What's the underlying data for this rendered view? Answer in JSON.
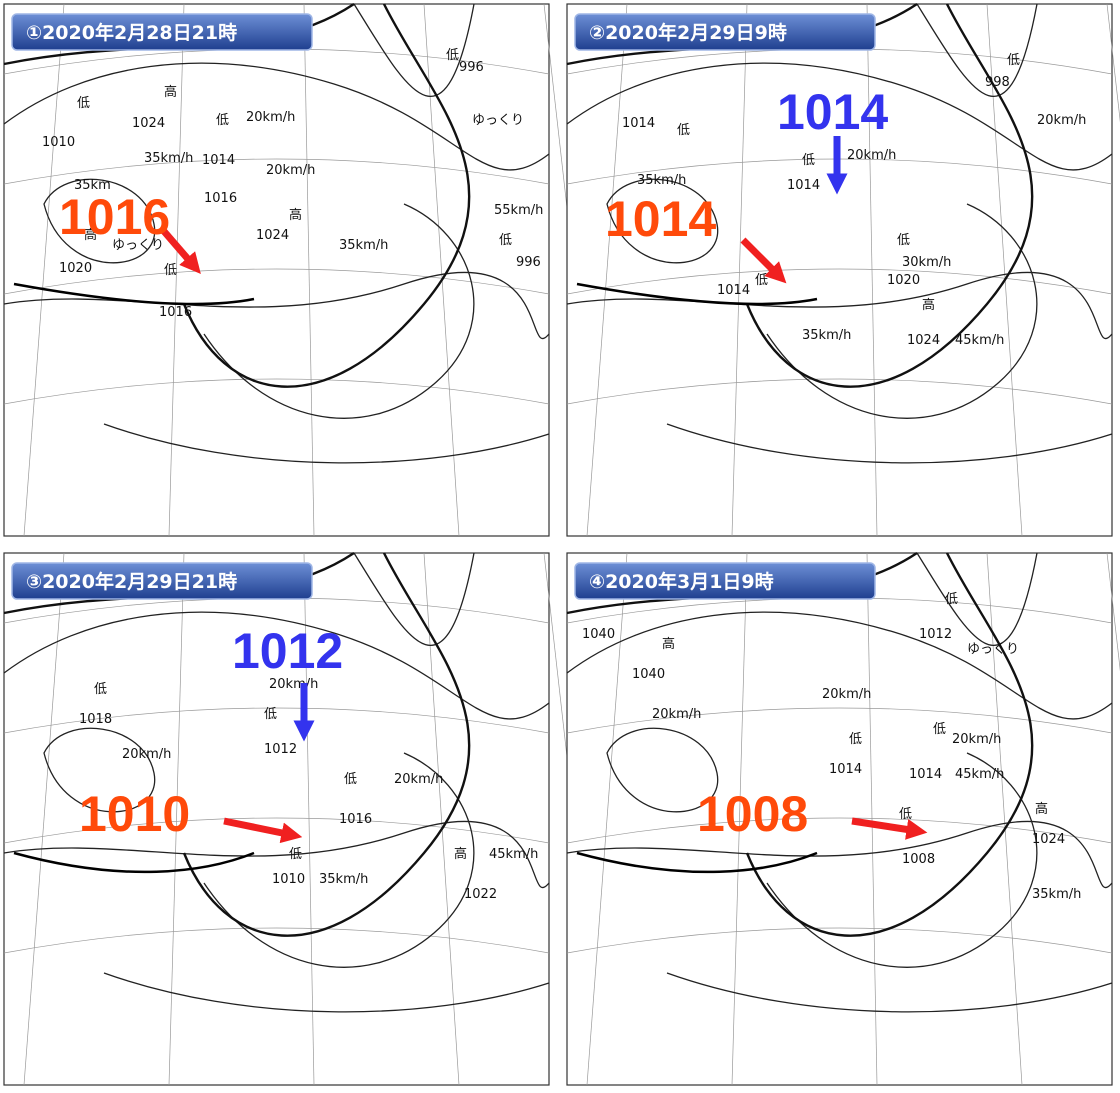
{
  "panels": [
    {
      "title": "①2020年2月28日21時",
      "big": [
        {
          "text": "1016",
          "color": "#ff4a0a"
        }
      ],
      "labels": [
        "低",
        "1010",
        "高",
        "1024",
        "35km/h",
        "低",
        "1014",
        "20km/h",
        "20km/h",
        "1016",
        "高",
        "1024",
        "35km/h",
        "低",
        "996",
        "ゆっくり",
        "55km/h",
        "低",
        "996",
        "高",
        "1020",
        "35km",
        "ゆっくり",
        "低",
        "1016"
      ]
    },
    {
      "title": "②2020年2月29日9時",
      "big": [
        {
          "text": "1014",
          "color": "#3333ee"
        },
        {
          "text": "1014",
          "color": "#ff4a0a"
        }
      ],
      "labels": [
        "低",
        "998",
        "20km/h",
        "1014",
        "低",
        "35km/h",
        "低",
        "1014",
        "20km/h",
        "低",
        "1020",
        "30km/h",
        "1014",
        "低",
        "35km/h",
        "高",
        "1024",
        "45km/h"
      ]
    },
    {
      "title": "③2020年2月29日21時",
      "big": [
        {
          "text": "1012",
          "color": "#3333ee"
        },
        {
          "text": "1010",
          "color": "#ff4a0a"
        }
      ],
      "labels": [
        "低",
        "1018",
        "20km/h",
        "20km/h",
        "低",
        "1012",
        "低",
        "1016",
        "20km/h",
        "低",
        "1010",
        "35km/h",
        "高",
        "45km/h",
        "1022"
      ]
    },
    {
      "title": "④2020年3月1日9時",
      "big": [
        {
          "text": "1008",
          "color": "#ff4a0a"
        }
      ],
      "labels": [
        "1040",
        "高",
        "1040",
        "20km/h",
        "20km/h",
        "低",
        "1012",
        "ゆっくり",
        "低",
        "1014",
        "低",
        "20km/h",
        "1014",
        "45km/h",
        "低",
        "1008",
        "高",
        "1024",
        "35km/h"
      ]
    }
  ]
}
